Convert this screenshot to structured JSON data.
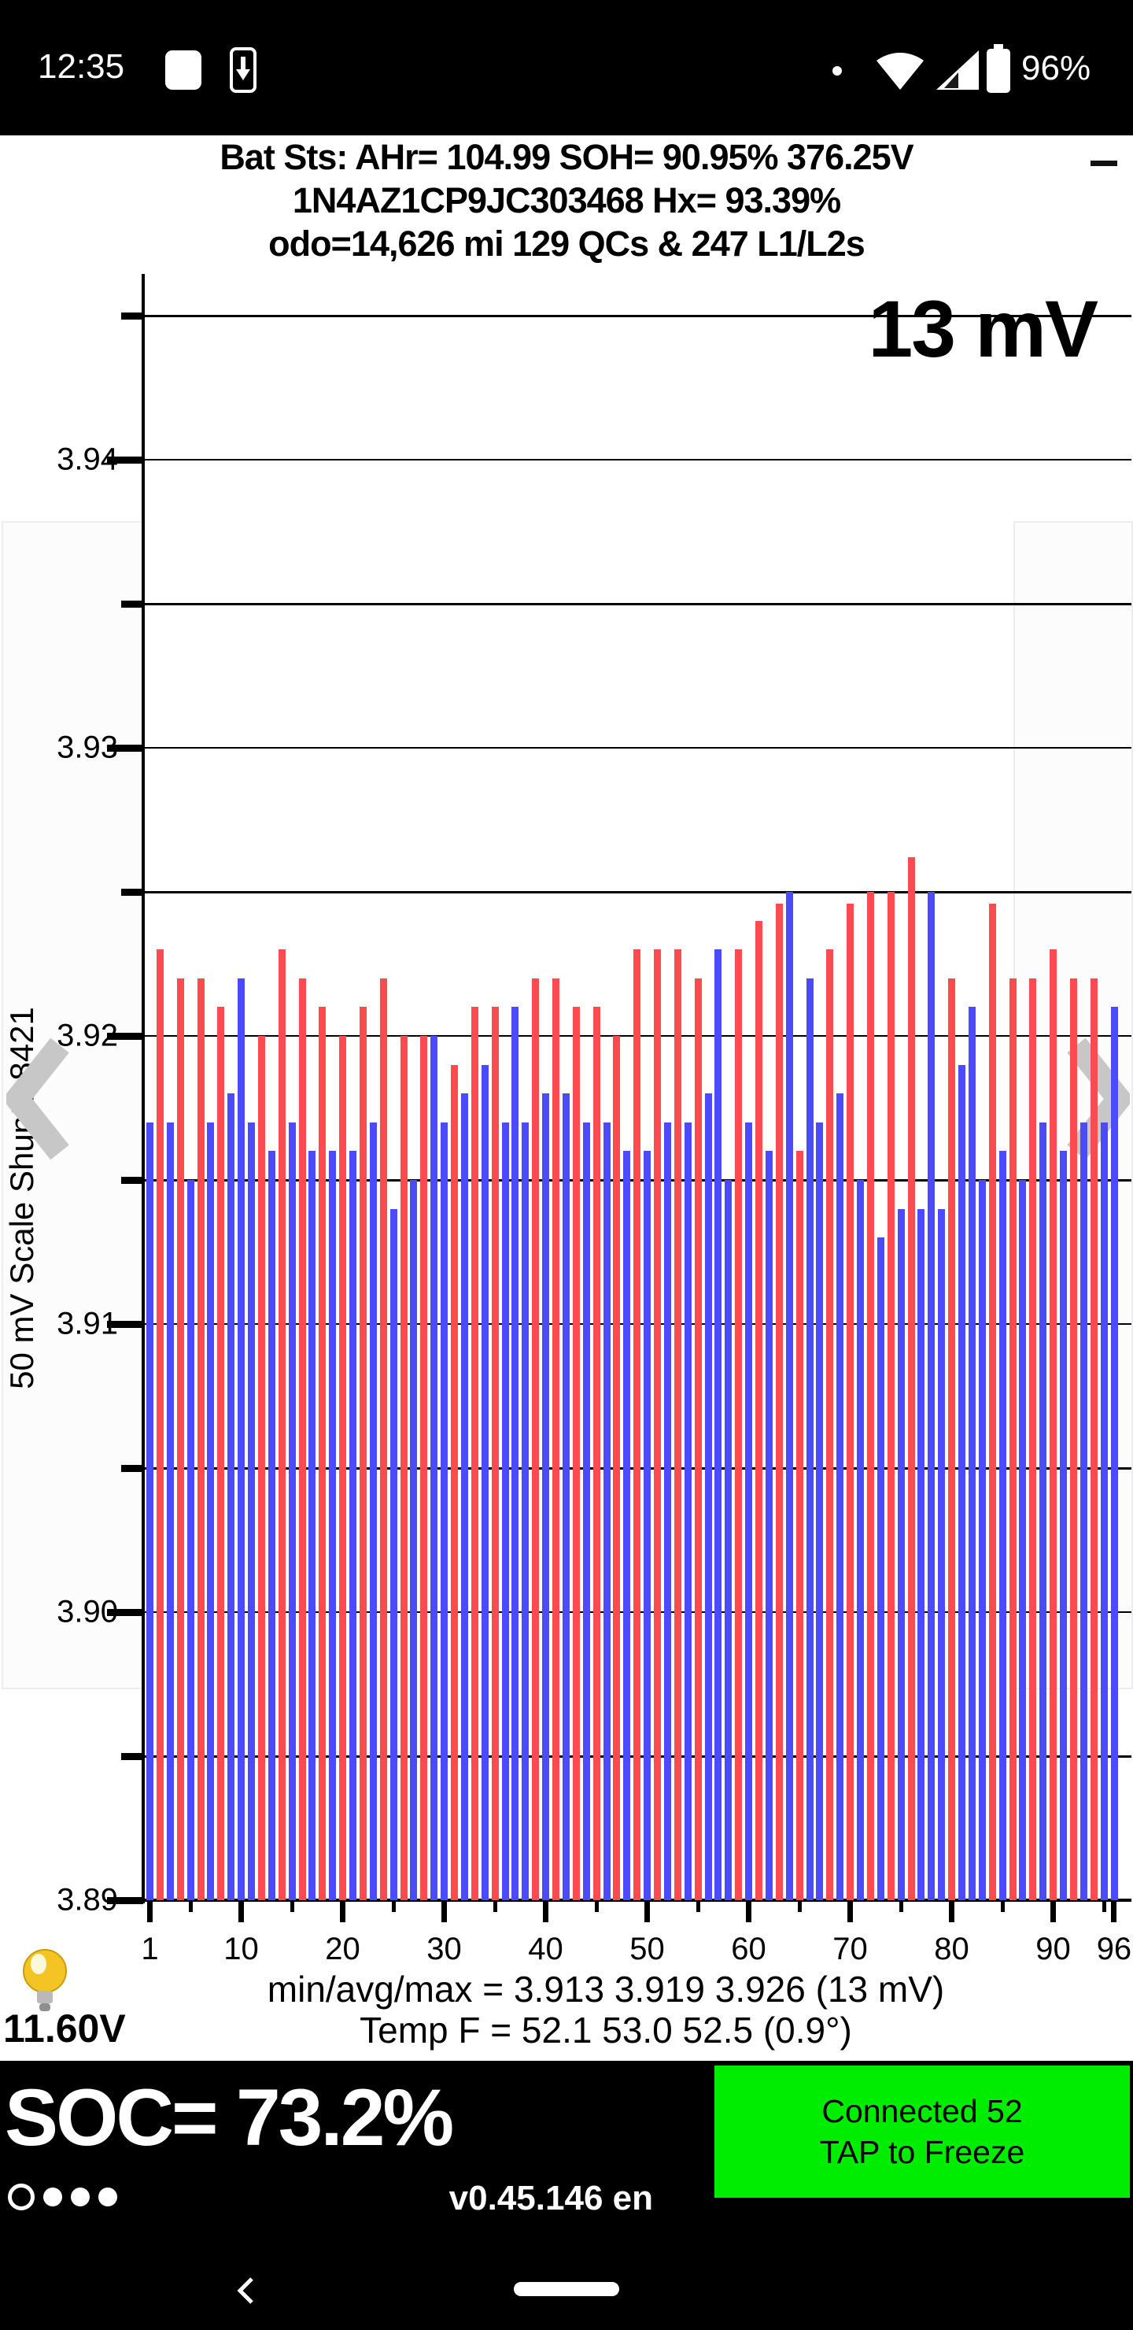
{
  "status_bar": {
    "time": "12:35",
    "battery_pct": "96%"
  },
  "header": {
    "line1": "Bat Sts:  AHr= 104.99  SOH= 90.95%  376.25V",
    "line2": "1N4AZ1CP9JC303468   Hx= 93.39%",
    "line3": "odo=14,626 mi 129 QCs & 247 L1/L2s"
  },
  "chart_data": {
    "type": "bar",
    "title_annotation": "13 mV",
    "ylabel": "50 mV Scale   Shunts 8421",
    "ylim": [
      3.889,
      3.9455
    ],
    "ytick_labels": [
      3.94,
      3.93,
      3.92,
      3.91,
      3.9,
      3.89
    ],
    "ytick_minor": [
      3.945,
      3.935,
      3.925,
      3.915,
      3.905,
      3.895
    ],
    "xtick_labels": [
      1,
      10,
      20,
      30,
      40,
      50,
      60,
      70,
      80,
      90,
      96
    ],
    "xtick_minor": [
      5,
      15,
      25,
      35,
      45,
      55,
      65,
      75,
      85,
      95
    ],
    "x_count": 96,
    "bar_color_red": "#fb4b50",
    "bar_color_blue": "#4b4bfb",
    "colors": "brbrbrbrbbbrbrbrbrbrbrbrbrbrbbrbrbrbbbrbrbrbrbrbrbrbrbrbbbrbrbrbrbbrbrbrbrbrbbbrbbbrbrbrbrbrbrbb",
    "values": [
      3.917,
      3.923,
      3.917,
      3.922,
      3.915,
      3.922,
      3.917,
      3.921,
      3.918,
      3.922,
      3.917,
      3.92,
      3.916,
      3.923,
      3.917,
      3.922,
      3.916,
      3.921,
      3.916,
      3.92,
      3.916,
      3.921,
      3.917,
      3.922,
      3.914,
      3.92,
      3.915,
      3.92,
      3.92,
      3.917,
      3.919,
      3.918,
      3.921,
      3.919,
      3.921,
      3.917,
      3.921,
      3.917,
      3.922,
      3.918,
      3.922,
      3.918,
      3.921,
      3.917,
      3.921,
      3.917,
      3.92,
      3.916,
      3.923,
      3.916,
      3.923,
      3.917,
      3.923,
      3.917,
      3.922,
      3.918,
      3.923,
      3.915,
      3.923,
      3.917,
      3.924,
      3.916,
      3.9246,
      3.925,
      3.916,
      3.922,
      3.917,
      3.923,
      3.918,
      3.9246,
      3.915,
      3.925,
      3.913,
      3.925,
      3.914,
      3.9262,
      3.914,
      3.925,
      3.914,
      3.922,
      3.919,
      3.921,
      3.915,
      3.9246,
      3.916,
      3.922,
      3.915,
      3.922,
      3.917,
      3.923,
      3.916,
      3.922,
      3.917,
      3.922,
      3.917,
      3.921
    ],
    "stats": {
      "min": "3.913",
      "avg": "3.919",
      "max": "3.926",
      "delta": "13 mV"
    }
  },
  "footer": {
    "stats_line": "min/avg/max = 3.913 3.919 3.926  (13 mV)",
    "temp_line": "Temp F = 52.1  53.0  52.5  (0.9°)",
    "aux_voltage": "11.60V"
  },
  "bottom_bar": {
    "soc": "SOC= 73.2%",
    "version": "v0.45.146 en",
    "connect_line1": "Connected 52",
    "connect_line2": "TAP to Freeze",
    "button_color": "#00ec00"
  }
}
